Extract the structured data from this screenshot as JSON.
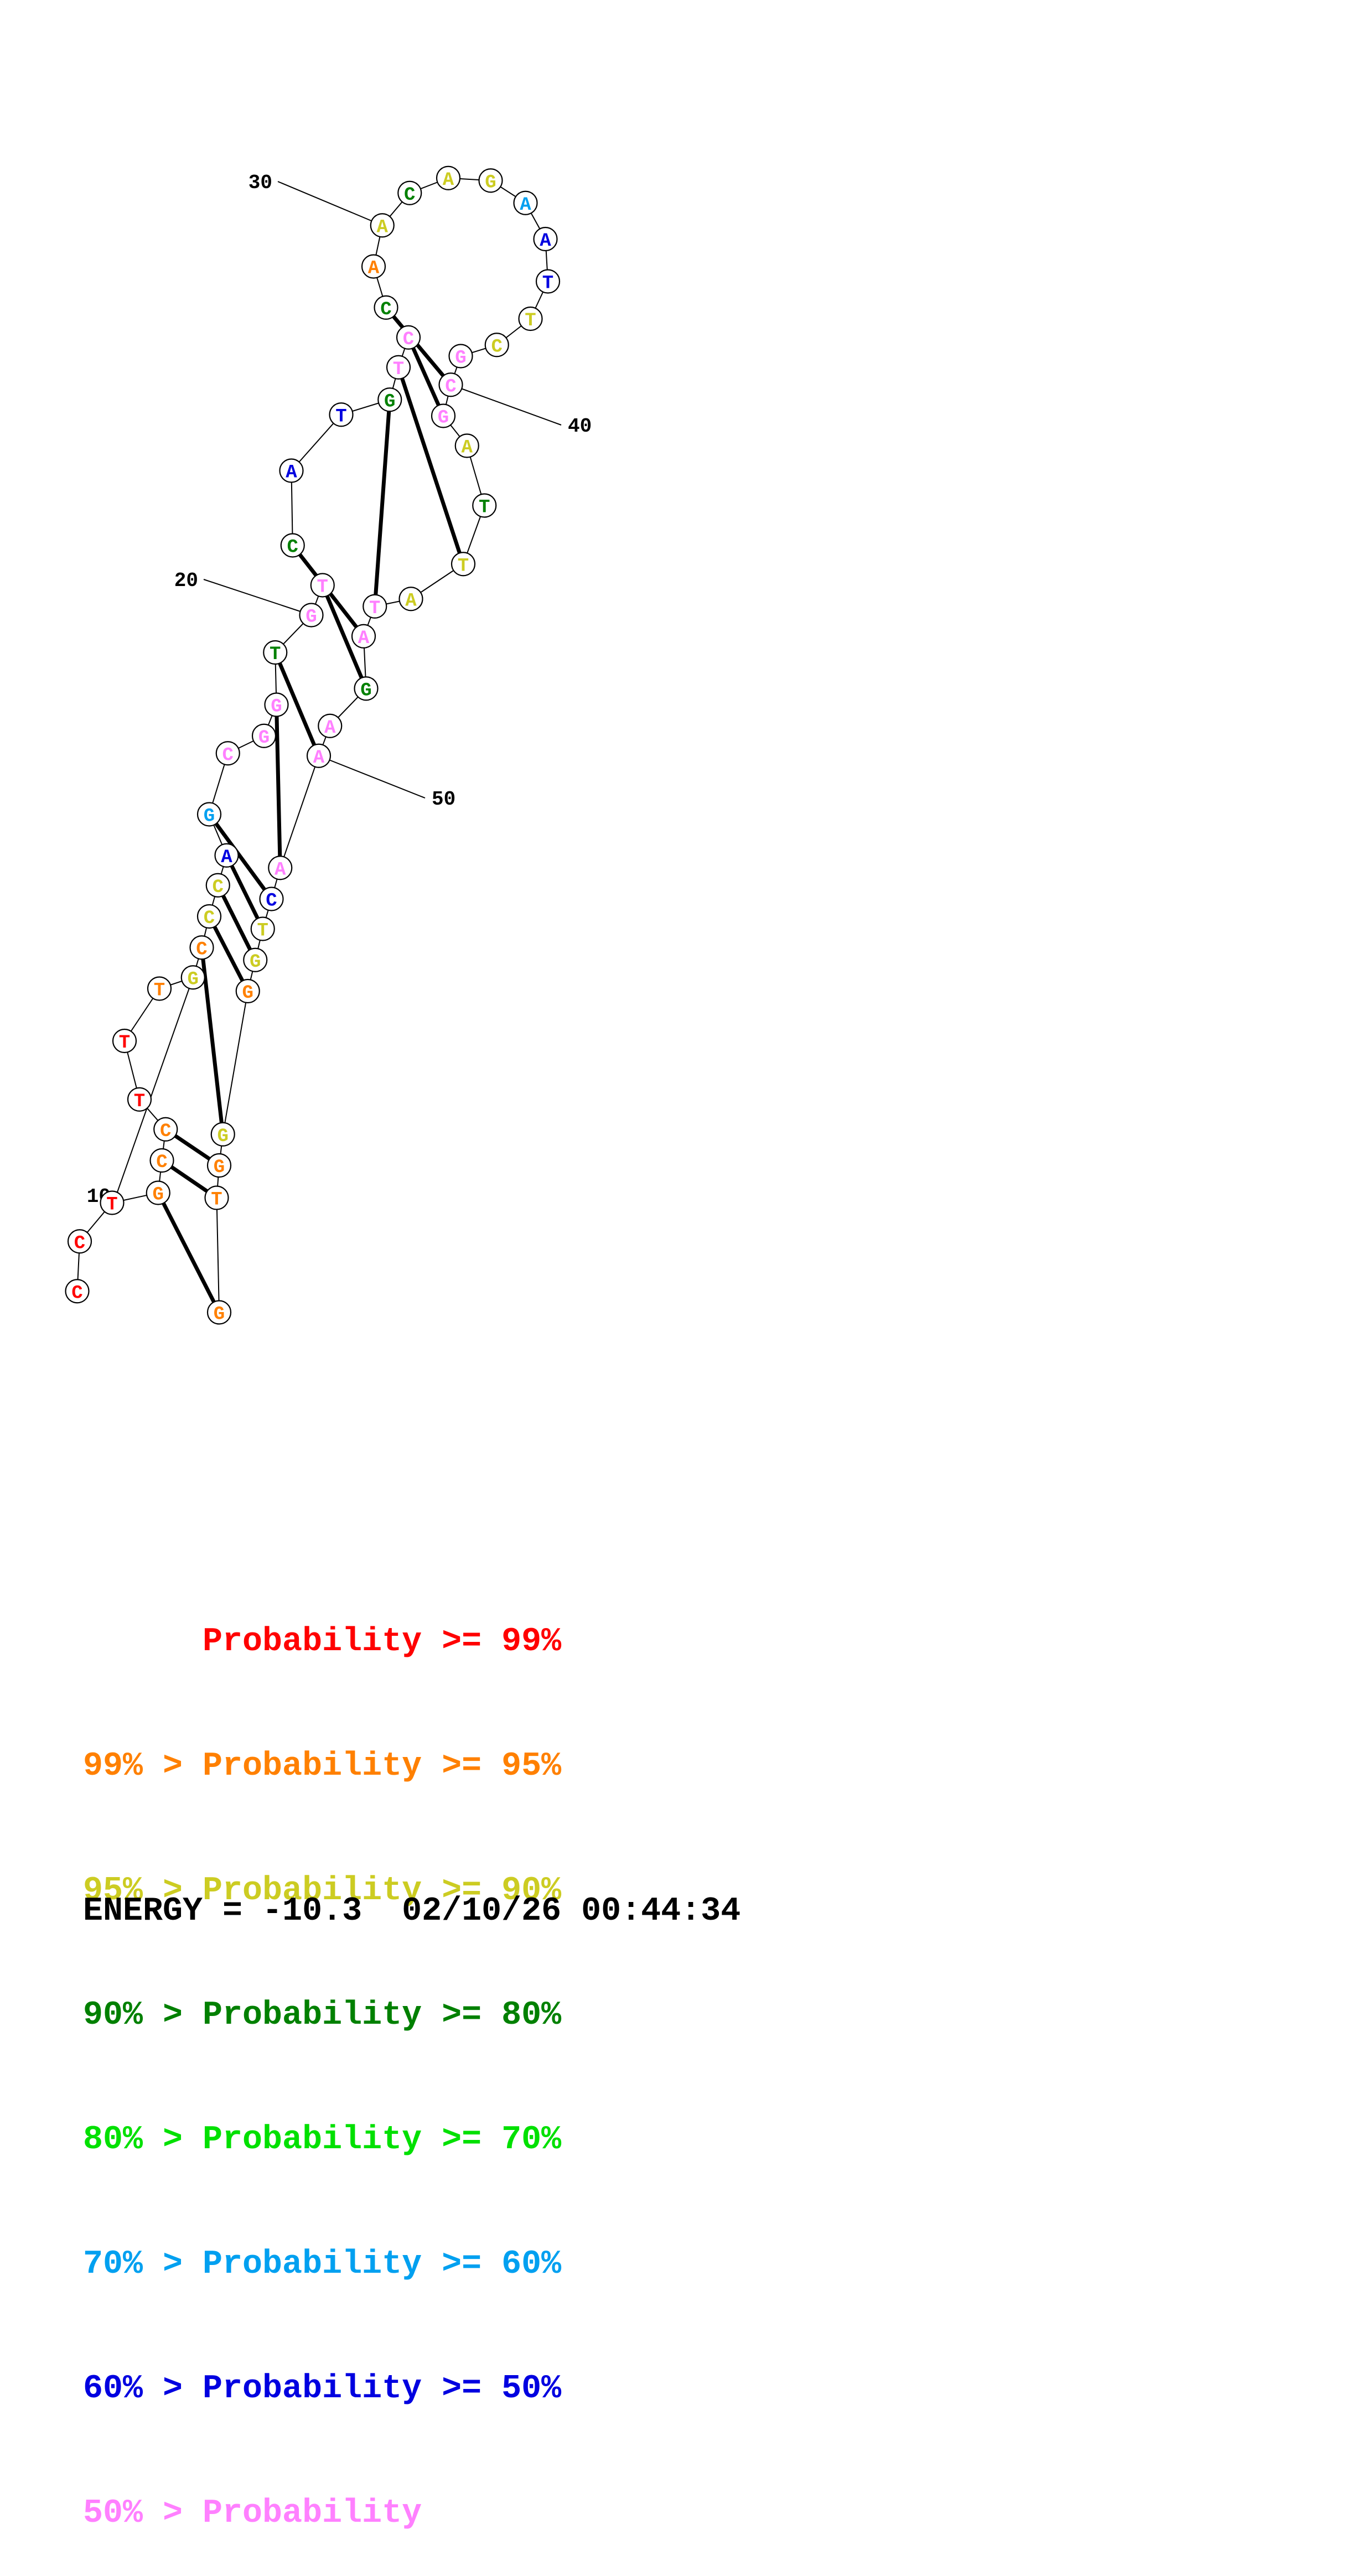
{
  "sequence": "CCTGCCTTTGCCCAGCGGTGTCATGTCCAACAGAATTCGCGATTATAGAAACTGGGGTGGCT",
  "nucleotide_colors": [
    "red",
    "red",
    "red",
    "orange",
    "orange",
    "orange",
    "red",
    "red",
    "orange",
    "yellow",
    "orange",
    "yellow",
    "yellow",
    "blue",
    "cyan",
    "pink",
    "pink",
    "pink",
    "green",
    "pink",
    "pink",
    "green",
    "blue",
    "blue",
    "green",
    "pink",
    "pink",
    "green",
    "orange",
    "yellow",
    "green",
    "yellow",
    "yellow",
    "cyan",
    "blue",
    "blue",
    "yellow",
    "yellow",
    "pink",
    "pink",
    "pink",
    "yellow",
    "green",
    "yellow",
    "yellow",
    "pink",
    "pink",
    "green",
    "pink",
    "pink",
    "pink",
    "blue",
    "yellow",
    "yellow",
    "orange",
    "yellow",
    "orange",
    "orange",
    "orange",
    "blue"
  ],
  "pairs": [
    [
      3,
      58
    ],
    [
      4,
      57
    ],
    [
      5,
      56
    ],
    [
      10,
      55
    ],
    [
      11,
      54
    ],
    [
      12,
      53
    ],
    [
      13,
      52
    ],
    [
      14,
      51
    ],
    [
      17,
      50
    ],
    [
      18,
      49
    ],
    [
      20,
      47
    ],
    [
      21,
      46
    ],
    [
      24,
      45
    ],
    [
      25,
      43
    ],
    [
      26,
      40
    ],
    [
      27,
      39
    ]
  ],
  "position_labels": [
    {
      "index": 10,
      "text": "10"
    },
    {
      "index": 20,
      "text": "20"
    },
    {
      "index": 30,
      "text": "30"
    },
    {
      "index": 40,
      "text": "40"
    },
    {
      "index": 50,
      "text": "50"
    }
  ],
  "colors": {
    "red": "#ff0000",
    "orange": "#ff8000",
    "yellow": "#cccc22",
    "green": "#008000",
    "lime": "#00e000",
    "cyan": "#00a0f0",
    "blue": "#0000e0",
    "pink": "#ff80ff"
  },
  "legend": [
    {
      "text": "      Probability >= 99%",
      "color": "red"
    },
    {
      "text": "99% > Probability >= 95%",
      "color": "orange"
    },
    {
      "text": "95% > Probability >= 90%",
      "color": "yellow"
    },
    {
      "text": "90% > Probability >= 80%",
      "color": "green"
    },
    {
      "text": "80% > Probability >= 70%",
      "color": "lime"
    },
    {
      "text": "70% > Probability >= 60%",
      "color": "cyan"
    },
    {
      "text": "60% > Probability >= 50%",
      "color": "blue"
    },
    {
      "text": "50% > Probability",
      "color": "pink"
    }
  ],
  "energy_text": "ENERGY = -10.3  02/10/26 00:44:34"
}
